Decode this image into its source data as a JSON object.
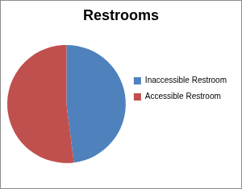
{
  "chart_data": {
    "type": "pie",
    "title": "Restrooms",
    "categories": [
      "Inaccessible Restroom",
      "Accessible Restroom"
    ],
    "values": [
      48,
      52
    ],
    "colors": [
      "#4f81bd",
      "#c0504d"
    ],
    "legend": "right"
  }
}
